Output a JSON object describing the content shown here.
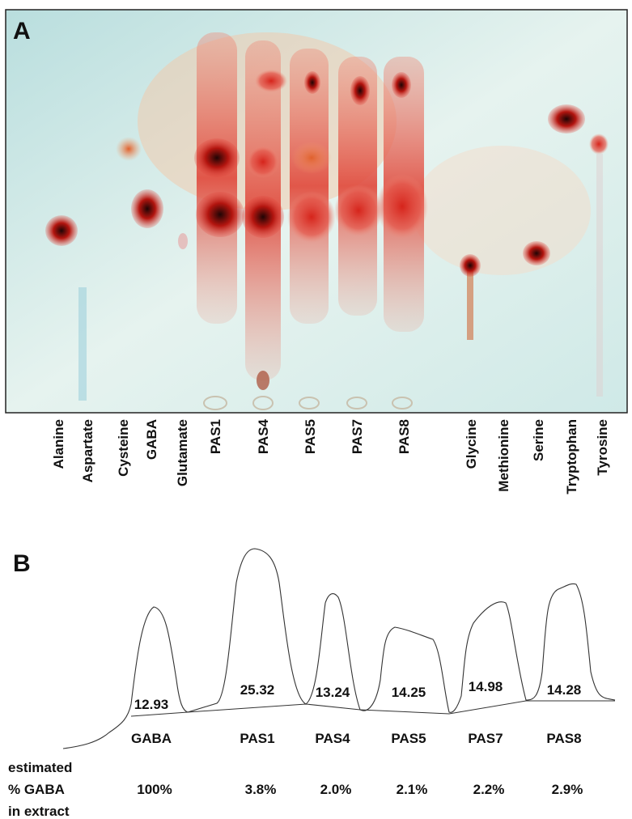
{
  "panel_a": {
    "label": "A",
    "lanes": [
      "Alanine",
      "Aspartate",
      "Cysteine",
      "GABA",
      "Glutamate",
      "PAS1",
      "PAS4",
      "PAS5",
      "PAS7",
      "PAS8",
      "Glycine",
      "Methionine",
      "Serine",
      "Tryptophan",
      "Tyrosine"
    ]
  },
  "panel_b": {
    "label": "B",
    "row_label": [
      "estimated",
      "% GABA",
      "in extract"
    ],
    "peaks": [
      {
        "name": "GABA",
        "area": "12.93",
        "percent": "100%"
      },
      {
        "name": "PAS1",
        "area": "25.32",
        "percent": "3.8%"
      },
      {
        "name": "PAS4",
        "area": "13.24",
        "percent": "2.0%"
      },
      {
        "name": "PAS5",
        "area": "14.25",
        "percent": "2.1%"
      },
      {
        "name": "PAS7",
        "area": "14.98",
        "percent": "2.2%"
      },
      {
        "name": "PAS8",
        "area": "14.28",
        "percent": "2.9%"
      }
    ]
  }
}
